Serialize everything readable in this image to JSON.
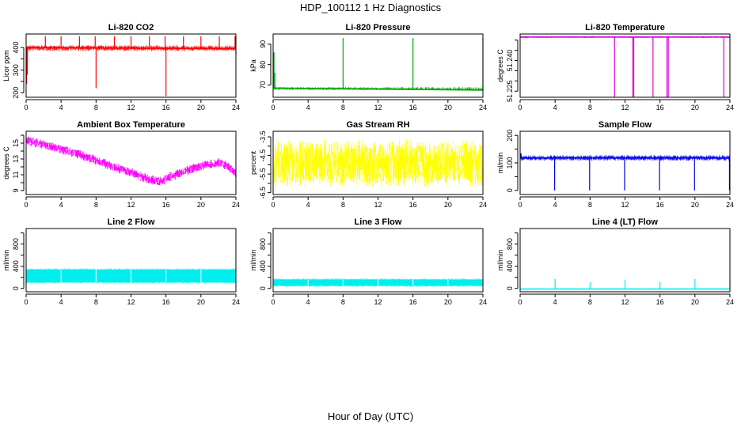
{
  "figure": {
    "title": "HDP_100112  1 Hz Diagnostics",
    "xlabel": "Hour of Day (UTC)"
  },
  "chart_data": [
    {
      "type": "line",
      "title": "Li-820 CO2",
      "ylabel": "Licor ppm",
      "color": "#ff0000",
      "xlim": [
        0,
        24
      ],
      "ylim": [
        180,
        460
      ],
      "x_ticks": [
        0,
        4,
        8,
        12,
        16,
        20,
        24
      ],
      "x_tick_labels": [
        "0",
        "4",
        "8",
        "12",
        "16",
        "20",
        "24"
      ],
      "y_ticks": [
        200,
        250,
        300,
        350,
        400
      ],
      "y_tick_labels": [
        "200",
        "",
        "300",
        "",
        "400"
      ],
      "baseline": {
        "x": [
          0,
          24
        ],
        "y": [
          400,
          395
        ],
        "band": [
          385,
          410
        ]
      },
      "spikes": [
        {
          "x": 0.05,
          "y": 240
        },
        {
          "x": 0.15,
          "y": 280
        },
        {
          "x": 2.2,
          "y": 450
        },
        {
          "x": 4.0,
          "y": 450
        },
        {
          "x": 6.1,
          "y": 450
        },
        {
          "x": 7.9,
          "y": 450
        },
        {
          "x": 8.0,
          "y": 220
        },
        {
          "x": 10.1,
          "y": 450
        },
        {
          "x": 12.0,
          "y": 450
        },
        {
          "x": 14.1,
          "y": 450
        },
        {
          "x": 15.9,
          "y": 450
        },
        {
          "x": 16.0,
          "y": 185
        },
        {
          "x": 18.0,
          "y": 450
        },
        {
          "x": 20.0,
          "y": 450
        },
        {
          "x": 22.1,
          "y": 450
        },
        {
          "x": 23.9,
          "y": 450
        },
        {
          "x": 24.0,
          "y": 370
        }
      ]
    },
    {
      "type": "line",
      "title": "Li-820 Pressure",
      "ylabel": "kPa",
      "color": "#00aa00",
      "xlim": [
        0,
        24
      ],
      "ylim": [
        64,
        95
      ],
      "x_ticks": [
        0,
        4,
        8,
        12,
        16,
        20,
        24
      ],
      "x_tick_labels": [
        "0",
        "4",
        "8",
        "12",
        "16",
        "20",
        "24"
      ],
      "y_ticks": [
        70,
        80,
        90
      ],
      "y_tick_labels": [
        "70",
        "80",
        "90"
      ],
      "baseline": {
        "x": [
          0,
          24
        ],
        "y": [
          68.5,
          67.5
        ],
        "band": [
          67.5,
          69
        ]
      },
      "spikes": [
        {
          "x": 0.1,
          "y": 86
        },
        {
          "x": 0.2,
          "y": 76
        },
        {
          "x": 8.0,
          "y": 93
        },
        {
          "x": 16.0,
          "y": 93
        },
        {
          "x": 24.0,
          "y": 93
        }
      ]
    },
    {
      "type": "line",
      "title": "Li-820 Temperature",
      "ylabel": "degrees C",
      "color": "#dd00dd",
      "xlim": [
        0,
        24
      ],
      "ylim": [
        51.222,
        51.253
      ],
      "x_ticks": [
        0,
        4,
        8,
        12,
        16,
        20,
        24
      ],
      "x_tick_labels": [
        "0",
        "4",
        "8",
        "12",
        "16",
        "20",
        "24"
      ],
      "y_ticks": [
        51.225,
        51.23,
        51.235,
        51.24,
        51.245,
        51.25
      ],
      "y_tick_labels": [
        "51.225",
        "",
        "",
        "51.240",
        "",
        ""
      ],
      "baseline": {
        "x": [
          0,
          24
        ],
        "y": [
          51.2515,
          51.2515
        ],
        "band": [
          51.251,
          51.252
        ]
      },
      "spikes": [
        {
          "x": 10.8,
          "y": 51.222
        },
        {
          "x": 12.9,
          "y": 51.222
        },
        {
          "x": 13.0,
          "y": 51.222
        },
        {
          "x": 15.2,
          "y": 51.222
        },
        {
          "x": 16.8,
          "y": 51.222
        },
        {
          "x": 16.95,
          "y": 51.222
        },
        {
          "x": 23.3,
          "y": 51.222
        }
      ]
    },
    {
      "type": "line",
      "title": "Ambient Box Temperature",
      "ylabel": "degrees C",
      "color": "#ff00ff",
      "xlim": [
        0,
        24
      ],
      "ylim": [
        8.5,
        16.5
      ],
      "x_ticks": [
        0,
        4,
        8,
        12,
        16,
        20,
        24
      ],
      "x_tick_labels": [
        "0",
        "4",
        "8",
        "12",
        "16",
        "20",
        "24"
      ],
      "y_ticks": [
        9,
        10,
        11,
        12,
        13,
        14,
        15,
        16
      ],
      "y_tick_labels": [
        "9",
        "",
        "11",
        "",
        "13",
        "",
        "15",
        ""
      ],
      "x": [
        0,
        2,
        4,
        6,
        8,
        10,
        12,
        14,
        15.5,
        16,
        18,
        20,
        22,
        23,
        24
      ],
      "y": [
        15.3,
        14.8,
        14.2,
        13.6,
        12.8,
        12.0,
        11.3,
        10.4,
        10.1,
        10.5,
        11.4,
        12.1,
        12.5,
        12.1,
        11.2
      ],
      "noise": 1.3
    },
    {
      "type": "line",
      "title": "Gas Stream RH",
      "ylabel": "percent",
      "color": "#ffff00",
      "xlim": [
        0,
        24
      ],
      "ylim": [
        -6.6,
        -3.2
      ],
      "x_ticks": [
        0,
        4,
        8,
        12,
        16,
        20,
        24
      ],
      "x_tick_labels": [
        "0",
        "4",
        "8",
        "12",
        "16",
        "20",
        "24"
      ],
      "y_ticks": [
        -6.5,
        -6.0,
        -5.5,
        -5.0,
        -4.5,
        -4.0,
        -3.5
      ],
      "y_tick_labels": [
        "-6.5",
        "",
        "-5.5",
        "",
        "-4.5",
        "",
        "-3.5"
      ],
      "x": [
        0,
        24
      ],
      "y": [
        -4.95,
        -4.95
      ],
      "noise": 2.7
    },
    {
      "type": "line",
      "title": "Sample Flow",
      "ylabel": "ml/min",
      "color": "#0000ee",
      "xlim": [
        0,
        24
      ],
      "ylim": [
        -15,
        215
      ],
      "x_ticks": [
        0,
        4,
        8,
        12,
        16,
        20,
        24
      ],
      "x_tick_labels": [
        "0",
        "4",
        "8",
        "12",
        "16",
        "20",
        "24"
      ],
      "y_ticks": [
        0,
        50,
        100,
        150,
        200
      ],
      "y_tick_labels": [
        "0",
        "",
        "100",
        "",
        "200"
      ],
      "baseline": {
        "x": [
          0,
          24
        ],
        "y": [
          118,
          118
        ],
        "band": [
          108,
          128
        ]
      },
      "spikes": [
        {
          "x": 0.1,
          "y": 135
        },
        {
          "x": 3.95,
          "y": 0
        },
        {
          "x": 7.95,
          "y": 0
        },
        {
          "x": 11.95,
          "y": 0
        },
        {
          "x": 15.95,
          "y": 0
        },
        {
          "x": 19.95,
          "y": 0
        },
        {
          "x": 23.95,
          "y": 0
        }
      ]
    },
    {
      "type": "area",
      "title": "Line 2 Flow",
      "ylabel": "ml/min",
      "color": "#00eeee",
      "xlim": [
        0,
        24
      ],
      "ylim": [
        -60,
        1080
      ],
      "x_ticks": [
        0,
        4,
        8,
        12,
        16,
        20,
        24
      ],
      "x_tick_labels": [
        "0",
        "4",
        "8",
        "12",
        "16",
        "20",
        "24"
      ],
      "y_ticks": [
        0,
        200,
        400,
        600,
        800,
        1000
      ],
      "y_tick_labels": [
        "0",
        "",
        "400",
        "",
        "800",
        ""
      ],
      "band": [
        110,
        340
      ],
      "gaps": [
        4.0,
        8.0,
        12.0,
        16.0,
        20.0
      ]
    },
    {
      "type": "area",
      "title": "Line 3 Flow",
      "ylabel": "ml/min",
      "color": "#00eeee",
      "xlim": [
        0,
        24
      ],
      "ylim": [
        -60,
        1080
      ],
      "x_ticks": [
        0,
        4,
        8,
        12,
        16,
        20,
        24
      ],
      "x_tick_labels": [
        "0",
        "4",
        "8",
        "12",
        "16",
        "20",
        "24"
      ],
      "y_ticks": [
        0,
        200,
        400,
        600,
        800,
        1000
      ],
      "y_tick_labels": [
        "0",
        "",
        "400",
        "",
        "800",
        ""
      ],
      "band": [
        50,
        160
      ],
      "gaps": [
        4.0,
        8.0,
        12.0,
        16.0,
        20.0
      ]
    },
    {
      "type": "line",
      "title": "Line 4 (LT) Flow",
      "ylabel": "ml/min",
      "color": "#00eeee",
      "xlim": [
        0,
        24
      ],
      "ylim": [
        -60,
        1080
      ],
      "x_ticks": [
        0,
        4,
        8,
        12,
        16,
        20,
        24
      ],
      "x_tick_labels": [
        "0",
        "4",
        "8",
        "12",
        "16",
        "20",
        "24"
      ],
      "y_ticks": [
        0,
        200,
        400,
        600,
        800,
        1000
      ],
      "y_tick_labels": [
        "0",
        "",
        "400",
        "",
        "800",
        ""
      ],
      "baseline": {
        "x": [
          0,
          24
        ],
        "y": [
          -10,
          -10
        ],
        "band": [
          -20,
          5
        ]
      },
      "spikes": [
        {
          "x": 4.0,
          "y": 170
        },
        {
          "x": 8.0,
          "y": 110
        },
        {
          "x": 12.0,
          "y": 160
        },
        {
          "x": 16.0,
          "y": 120
        },
        {
          "x": 20.0,
          "y": 170
        },
        {
          "x": 24.0,
          "y": 130
        }
      ]
    }
  ]
}
